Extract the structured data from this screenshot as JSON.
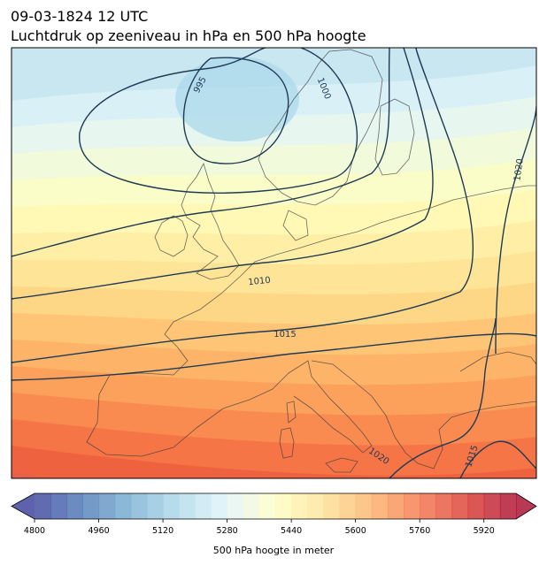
{
  "header": {
    "datetime": "09-03-1824 12 UTC",
    "title": "Luchtdruk op zeeniveau in hPa en 500 hPa hoogte"
  },
  "chart_data": {
    "type": "contour-map",
    "region": "Europe",
    "filled_variable": "500 hPa hoogte in meter",
    "isobar_labels": [
      "995",
      "1000",
      "1010",
      "1015",
      "1020",
      "1020",
      "1015"
    ],
    "isobars": [
      {
        "value": 995,
        "label": "995"
      },
      {
        "value": 1000,
        "label": "1000"
      },
      {
        "value": 1005,
        "label": ""
      },
      {
        "value": 1010,
        "label": "1010"
      },
      {
        "value": 1015,
        "label": "1015"
      },
      {
        "value": 1020,
        "label": "1020"
      }
    ],
    "colorbar": {
      "label": "500 hPa hoogte in meter",
      "min": 4800,
      "max": 6000,
      "step": 40,
      "extend": "both",
      "ticks": [
        4800,
        4960,
        5120,
        5280,
        5440,
        5600,
        5760,
        5920
      ],
      "tick_labels": [
        "4800",
        "4960",
        "5120",
        "5280",
        "5440",
        "5600",
        "5760",
        "5920"
      ],
      "colormap": "RdYlBu_r"
    },
    "field_range_shown": [
      5200,
      5800
    ]
  }
}
